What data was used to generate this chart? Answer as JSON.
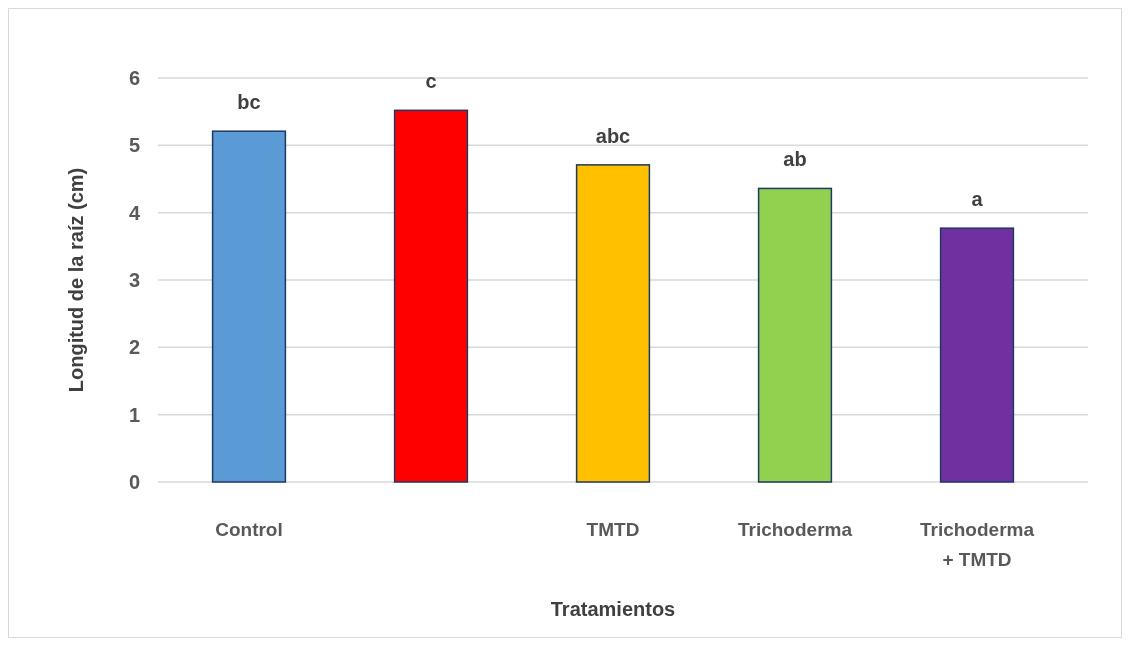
{
  "chart_data": {
    "type": "bar",
    "xlabel": "Tratamientos",
    "ylabel": "Longitud de la raíz (cm)",
    "categories": [
      "Control",
      null,
      "TMTD",
      "Trichoderma",
      "Trichoderma + TMTD"
    ],
    "values": [
      5.21,
      5.52,
      4.71,
      4.36,
      3.77
    ],
    "colors": [
      "#5b9bd5",
      "#ff0000",
      "#ffc000",
      "#92d050",
      "#7030a0"
    ],
    "ylim": [
      0,
      6
    ],
    "yticks": [
      0,
      1,
      2,
      3,
      4,
      5,
      6
    ],
    "grid": "y",
    "annotations": [
      "bc",
      "c",
      "abc",
      "ab",
      "a"
    ]
  }
}
